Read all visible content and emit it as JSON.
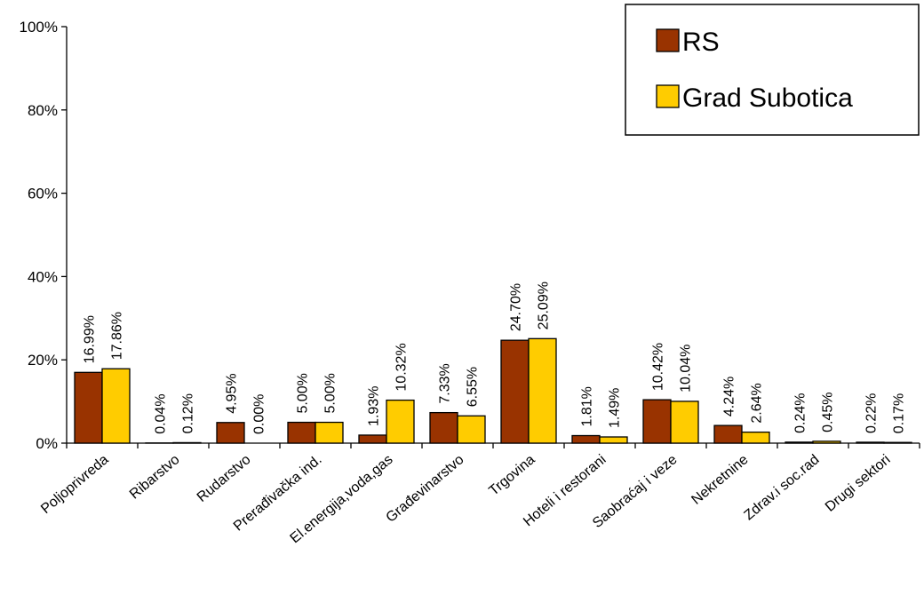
{
  "chart_data": {
    "type": "bar",
    "title": "",
    "xlabel": "",
    "ylabel": "",
    "ylim": [
      0,
      100
    ],
    "y_ticks": [
      "0%",
      "20%",
      "40%",
      "60%",
      "80%",
      "100%"
    ],
    "y_tick_values": [
      0,
      20,
      40,
      60,
      80,
      100
    ],
    "grid": false,
    "legend_position": "top-right",
    "categories": [
      "Poljoprivreda",
      "Ribarstvo",
      "Rudarstvo",
      "Prerađivačka ind.",
      "El.energija,voda,gas",
      "Građevinarstvo",
      "Trgovina",
      "Hoteli i restorani",
      "Saobraćaj i veze",
      "Nekretnine",
      "Zdrav.i soc.rad",
      "Drugi sektori"
    ],
    "series": [
      {
        "name": "RS",
        "color": "#993300",
        "values": [
          16.99,
          0.04,
          4.95,
          5.0,
          1.93,
          7.33,
          24.7,
          1.81,
          10.42,
          4.24,
          0.24,
          0.22
        ],
        "labels": [
          "16.99%",
          "0.04%",
          "4.95%",
          "5.00%",
          "1.93%",
          "7.33%",
          "24.70%",
          "1.81%",
          "10.42%",
          "4.24%",
          "0.24%",
          "0.22%"
        ]
      },
      {
        "name": "Grad Subotica",
        "color": "#FFCC00",
        "values": [
          17.86,
          0.12,
          0.0,
          5.0,
          10.32,
          6.55,
          25.09,
          1.49,
          10.04,
          2.64,
          0.45,
          0.17
        ],
        "labels": [
          "17.86%",
          "0.12%",
          "0.00%",
          "5.00%",
          "10.32%",
          "6.55%",
          "25.09%",
          "1.49%",
          "10.04%",
          "2.64%",
          "0.45%",
          "0.17%"
        ]
      }
    ]
  }
}
